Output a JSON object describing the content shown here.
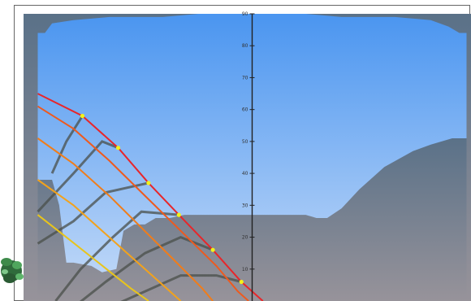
{
  "chart_data": {
    "type": "line",
    "title": "",
    "xlabel": "",
    "ylabel": "",
    "ylim": [
      0,
      90
    ],
    "y_ticks": [
      10,
      20,
      30,
      40,
      50,
      60,
      70,
      80,
      90
    ],
    "grid": false,
    "legend": "none",
    "sun_paths": [
      {
        "color": "#e8262a",
        "points": [
          [
            -120,
            65
          ],
          [
            -95,
            58
          ],
          [
            -75,
            48
          ],
          [
            -58,
            37
          ],
          [
            -41,
            27
          ],
          [
            -22,
            16
          ],
          [
            -6,
            6
          ],
          [
            6,
            0
          ]
        ]
      },
      {
        "color": "#ee5a1e",
        "points": [
          [
            -120,
            61
          ],
          [
            -100,
            54
          ],
          [
            -80,
            44
          ],
          [
            -60,
            33
          ],
          [
            -40,
            22
          ],
          [
            -20,
            11
          ],
          [
            -8,
            3
          ],
          [
            -2,
            0
          ]
        ]
      },
      {
        "color": "#f07d1a",
        "points": [
          [
            -120,
            51
          ],
          [
            -100,
            43
          ],
          [
            -80,
            33
          ],
          [
            -62,
            23
          ],
          [
            -44,
            13
          ],
          [
            -28,
            4
          ],
          [
            -22,
            0
          ]
        ]
      },
      {
        "color": "#f2a21c",
        "points": [
          [
            -120,
            38
          ],
          [
            -100,
            30
          ],
          [
            -82,
            21
          ],
          [
            -64,
            12
          ],
          [
            -48,
            4
          ],
          [
            -40,
            0
          ]
        ]
      },
      {
        "color": "#e8c41c",
        "points": [
          [
            -120,
            27
          ],
          [
            -104,
            20
          ],
          [
            -86,
            12
          ],
          [
            -68,
            4
          ],
          [
            -58,
            0
          ]
        ]
      }
    ],
    "hour_lines": [
      {
        "points": [
          [
            -112,
            40
          ],
          [
            -104,
            50
          ],
          [
            -95,
            58
          ]
        ]
      },
      {
        "points": [
          [
            -120,
            28
          ],
          [
            -100,
            40
          ],
          [
            -84,
            50
          ],
          [
            -75,
            48
          ]
        ]
      },
      {
        "points": [
          [
            -120,
            18
          ],
          [
            -100,
            25
          ],
          [
            -82,
            34
          ],
          [
            -66,
            36
          ],
          [
            -58,
            37
          ]
        ]
      },
      {
        "points": [
          [
            -110,
            0
          ],
          [
            -96,
            10
          ],
          [
            -78,
            20
          ],
          [
            -62,
            28
          ],
          [
            -41,
            27
          ]
        ]
      },
      {
        "points": [
          [
            -100,
            -2
          ],
          [
            -82,
            6
          ],
          [
            -60,
            15
          ],
          [
            -40,
            20
          ],
          [
            -22,
            16
          ]
        ]
      },
      {
        "points": [
          [
            -80,
            -2
          ],
          [
            -60,
            3
          ],
          [
            -40,
            8
          ],
          [
            -20,
            8
          ],
          [
            -6,
            6
          ]
        ]
      }
    ],
    "hour_markers": [
      [
        -95,
        58
      ],
      [
        -75,
        48
      ],
      [
        -58,
        37
      ],
      [
        -41,
        27
      ],
      [
        -22,
        16
      ],
      [
        -6,
        6
      ]
    ],
    "horizon_obstruction": [
      [
        -120,
        38
      ],
      [
        -112,
        38
      ],
      [
        -108,
        30
      ],
      [
        -104,
        12
      ],
      [
        -100,
        12
      ],
      [
        -90,
        11
      ],
      [
        -84,
        9
      ],
      [
        -76,
        10
      ],
      [
        -72,
        22
      ],
      [
        -66,
        24
      ],
      [
        -60,
        24
      ],
      [
        -54,
        26
      ],
      [
        -46,
        26
      ],
      [
        -38,
        27
      ],
      [
        -30,
        27
      ],
      [
        -20,
        27
      ],
      [
        -8,
        27
      ],
      [
        0,
        27
      ],
      [
        20,
        27
      ],
      [
        30,
        27
      ],
      [
        36,
        26
      ],
      [
        42,
        26
      ],
      [
        50,
        29
      ],
      [
        60,
        35
      ],
      [
        74,
        42
      ],
      [
        90,
        47
      ],
      [
        100,
        49
      ],
      [
        112,
        51
      ],
      [
        120,
        51
      ]
    ],
    "sky_outline": [
      [
        -120,
        84
      ],
      [
        -116,
        84
      ],
      [
        -112,
        87
      ],
      [
        -100,
        88
      ],
      [
        -80,
        89
      ],
      [
        -50,
        89
      ],
      [
        -30,
        90
      ],
      [
        0,
        90
      ],
      [
        30,
        90
      ],
      [
        50,
        89
      ],
      [
        80,
        89
      ],
      [
        100,
        88
      ],
      [
        110,
        86
      ],
      [
        116,
        84
      ],
      [
        120,
        84
      ]
    ],
    "xlim": [
      -130,
      130
    ]
  }
}
